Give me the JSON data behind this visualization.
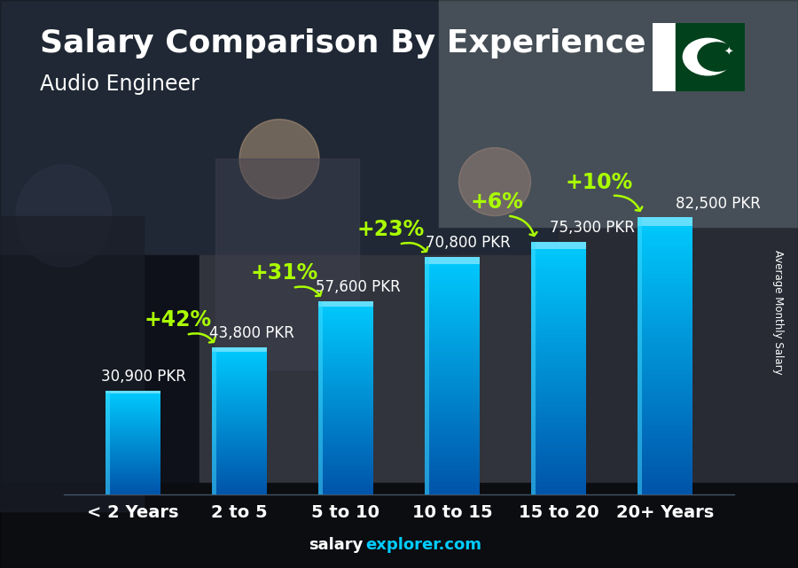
{
  "title": "Salary Comparison By Experience",
  "subtitle": "Audio Engineer",
  "categories": [
    "< 2 Years",
    "2 to 5",
    "5 to 10",
    "10 to 15",
    "15 to 20",
    "20+ Years"
  ],
  "values": [
    30900,
    43800,
    57600,
    70800,
    75300,
    82500
  ],
  "labels": [
    "30,900 PKR",
    "43,800 PKR",
    "57,600 PKR",
    "70,800 PKR",
    "75,300 PKR",
    "82,500 PKR"
  ],
  "pct_changes": [
    "+42%",
    "+31%",
    "+23%",
    "+6%",
    "+10%"
  ],
  "bar_color": "#00b4d8",
  "bar_edge_color": "#0077b6",
  "ylabel": "Average Monthly Salary",
  "text_color_white": "#ffffff",
  "text_color_cyan": "#90e0ef",
  "text_color_green": "#aaff00",
  "title_fontsize": 26,
  "subtitle_fontsize": 17,
  "label_fontsize": 12,
  "pct_fontsize": 17,
  "xtick_fontsize": 14,
  "ylim_max": 105000,
  "bg_dark": "#1a2035",
  "bg_mid": "#2a3550",
  "footer_salary_color": "#ffffff",
  "footer_explorer_color": "#00ccff"
}
